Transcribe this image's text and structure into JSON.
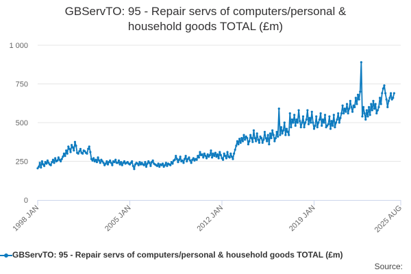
{
  "title_line1": "GBServTO: 95 - Repair servs of computers/personal &",
  "title_line2": "household goods TOTAL (£m)",
  "source_label": "Source:",
  "colors": {
    "series": "#0e7bbf",
    "grid": "#e6e6e6",
    "axis": "#ccd6eb",
    "text": "#666666"
  },
  "chart_data": {
    "type": "line",
    "title": "GBServTO: 95 - Repair servs of computers/personal & household goods TOTAL (£m)",
    "xlabel": "",
    "ylabel": "",
    "ylim": [
      0,
      1000
    ],
    "yticks": [
      0,
      250,
      500,
      750,
      1000
    ],
    "ytick_labels": [
      "0",
      "250",
      "500",
      "750",
      "1 000"
    ],
    "xticks": [
      "1998 JAN",
      "2005 JAN",
      "2012 JAN",
      "2019 JAN",
      "2025 AUG"
    ],
    "xrange": [
      "1998-01",
      "2025-08"
    ],
    "grid": true,
    "legend_position": "bottom",
    "series": [
      {
        "name": "GBServTO: 95 - Repair servs of computers/personal & household goods TOTAL (£m)",
        "frequency": "monthly",
        "start": "1998-01",
        "values": [
          205,
          215,
          240,
          210,
          250,
          230,
          220,
          245,
          235,
          255,
          240,
          230,
          225,
          245,
          260,
          240,
          270,
          250,
          255,
          275,
          260,
          250,
          265,
          280,
          300,
          285,
          320,
          300,
          345,
          330,
          310,
          355,
          340,
          320,
          375,
          350,
          305,
          300,
          315,
          330,
          305,
          300,
          320,
          315,
          305,
          300,
          330,
          345,
          310,
          265,
          255,
          270,
          250,
          260,
          245,
          275,
          255,
          240,
          260,
          250,
          240,
          225,
          235,
          250,
          230,
          245,
          255,
          240,
          225,
          250,
          245,
          260,
          240,
          240,
          255,
          230,
          245,
          225,
          240,
          250,
          235,
          240,
          245,
          235,
          230,
          240,
          250,
          220,
          200,
          230,
          240,
          235,
          225,
          245,
          230,
          240,
          230,
          225,
          245,
          215,
          235,
          250,
          240,
          220,
          245,
          255,
          235,
          230,
          225,
          220,
          235,
          215,
          230,
          225,
          235,
          215,
          225,
          240,
          220,
          235,
          230,
          225,
          245,
          235,
          255,
          260,
          285,
          265,
          245,
          260,
          280,
          250,
          255,
          240,
          265,
          285,
          250,
          265,
          275,
          255,
          240,
          260,
          270,
          255,
          265,
          260,
          285,
          275,
          310,
          290,
          295,
          275,
          300,
          285,
          270,
          295,
          280,
          290,
          320,
          275,
          300,
          285,
          305,
          280,
          295,
          270,
          310,
          290,
          270,
          260,
          300,
          285,
          270,
          310,
          280,
          275,
          300,
          280,
          265,
          300,
          325,
          350,
          380,
          360,
          395,
          370,
          400,
          380,
          420,
          390,
          410,
          400,
          360,
          380,
          420,
          400,
          375,
          450,
          400,
          380,
          430,
          390,
          370,
          410,
          400,
          370,
          390,
          440,
          400,
          380,
          420,
          360,
          430,
          400,
          450,
          420,
          380,
          400,
          440,
          410,
          590,
          420,
          470,
          430,
          450,
          500,
          420,
          460,
          440,
          420,
          560,
          470,
          520,
          500,
          550,
          480,
          520,
          500,
          580,
          510,
          470,
          500,
          540,
          470,
          500,
          520,
          580,
          490,
          530,
          500,
          570,
          500,
          460,
          480,
          540,
          470,
          500,
          520,
          560,
          480,
          520,
          500,
          550,
          470,
          480,
          490,
          540,
          460,
          510,
          480,
          550,
          470,
          500,
          520,
          560,
          500,
          530,
          560,
          610,
          560,
          590,
          570,
          620,
          560,
          590,
          640,
          600,
          570,
          610,
          600,
          660,
          620,
          680,
          650,
          700,
          890,
          540,
          600,
          560,
          520,
          580,
          540,
          600,
          550,
          620,
          580,
          640,
          590,
          620,
          560,
          580,
          600,
          660,
          620,
          690,
          720,
          740,
          690,
          650,
          600,
          640,
          660,
          690,
          650,
          660,
          690
        ]
      }
    ]
  }
}
